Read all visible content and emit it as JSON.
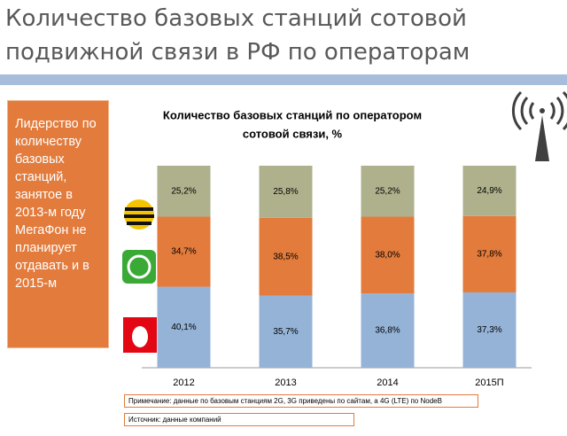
{
  "slide": {
    "title_lines": [
      "Количество базовых станций сотовой",
      "подвижной связи в РФ по операторам"
    ],
    "sidebar": "Лидерство по количеству базовых станций, занятое в 2013-м году МегаФон не планирует отдавать и в 2015-м",
    "notes": [
      "Примечание: данные по базовым станциям 2G, 3G приведены по сайтам, а 4G (LTE) по NodeB",
      "Источник: данные компаний"
    ]
  },
  "chart_data": {
    "type": "stacked_bar",
    "title_lines": [
      "Количество базовых станций по оператором",
      "сотовой связи, %"
    ],
    "categories": [
      "2012",
      "2013",
      "2014",
      "2015П"
    ],
    "ylim": [
      0,
      100
    ],
    "series": [
      {
        "color": "#95b3d7",
        "values": [
          40.1,
          35.7,
          36.8,
          37.3
        ],
        "value_labels": [
          "40,1%",
          "35,7%",
          "36,8%",
          "37,3%"
        ]
      },
      {
        "color": "#e27b3c",
        "values": [
          34.7,
          38.5,
          38.0,
          37.8
        ],
        "value_labels": [
          "34,7%",
          "38,5%",
          "38,0%",
          "37,8%"
        ]
      },
      {
        "color": "#aeb18c",
        "values": [
          25.2,
          25.8,
          25.2,
          24.9
        ],
        "value_labels": [
          "25,2%",
          "25,8%",
          "25,2%",
          "24,9%"
        ]
      }
    ]
  }
}
